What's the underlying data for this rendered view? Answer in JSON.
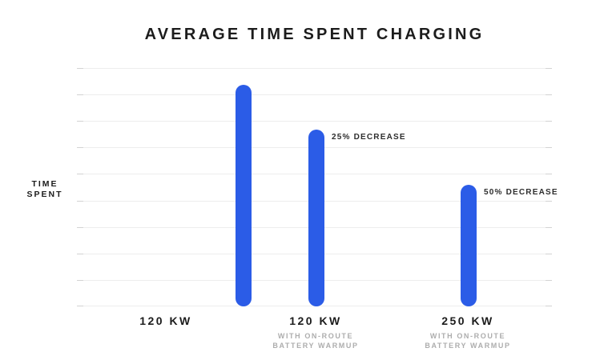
{
  "header": {
    "title": "AVERAGE TIME SPENT CHARGING"
  },
  "y_axis": {
    "label_line1": "TIME",
    "label_line2": "SPENT"
  },
  "colors": {
    "bar_blue": "#2B5CE7",
    "text_dark": "#1C1C1C",
    "text_gray": "#ADADAD",
    "gridline": "#EDEDED",
    "gridline_tick": "#D2D2D2",
    "background": "#FFFFFF"
  },
  "chart_data": {
    "type": "bar",
    "title": "AVERAGE TIME SPENT CHARGING",
    "ylabel": "TIME SPENT",
    "xlabel": "",
    "categories": [
      "120 KW",
      "120 KW WITH ON-ROUTE BATTERY WARMUP",
      "250 KW WITH ON-ROUTE BATTERY WARMUP"
    ],
    "values": [
      100,
      75,
      50
    ],
    "value_unit": "relative charging time (first bar = 100, no numeric axis shown)",
    "grid": true,
    "gridline_count": 10,
    "legend": false,
    "y_tick_labels_shown": false,
    "bar_color": "#2B5CE7",
    "bars": [
      {
        "label": "120 KW",
        "sublabel_line1": "",
        "sublabel_line2": "",
        "annotation": "",
        "value": 100,
        "height_pct": 93
      },
      {
        "label": "120 KW",
        "sublabel_line1": "WITH ON-ROUTE",
        "sublabel_line2": "BATTERY WARMUP",
        "annotation": "25% DECREASE",
        "value": 75,
        "height_pct": 74
      },
      {
        "label": "250 KW",
        "sublabel_line1": "WITH ON-ROUTE",
        "sublabel_line2": "BATTERY WARMUP",
        "annotation": "50% DECREASE",
        "value": 50,
        "height_pct": 51
      }
    ]
  }
}
